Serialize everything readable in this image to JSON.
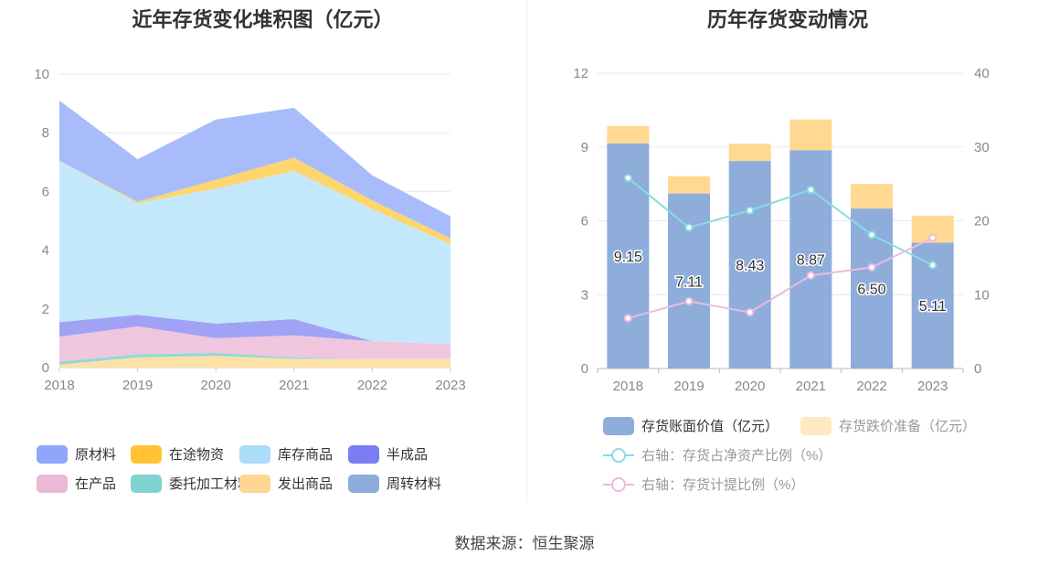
{
  "left_title": "近年存货变化堆积图（亿元）",
  "right_title": "历年存货变动情况",
  "source": "数据来源：恒生聚源",
  "chart_data": [
    {
      "type": "area",
      "stacked": true,
      "title": "近年存货变化堆积图（亿元）",
      "x": [
        "2018",
        "2019",
        "2020",
        "2021",
        "2022",
        "2023"
      ],
      "y_ticks": [
        "0",
        "2",
        "4",
        "6",
        "8",
        "10"
      ],
      "ylim": [
        0,
        10
      ],
      "grid": true,
      "legend_position": "bottom",
      "series": [
        {
          "name": "周转材料",
          "color": "#8fabdc",
          "values": [
            0,
            0,
            0,
            0,
            0,
            0
          ]
        },
        {
          "name": "发出商品",
          "color": "#ffe0a6",
          "values": [
            0.1,
            0.35,
            0.4,
            0.3,
            0.3,
            0.3
          ]
        },
        {
          "name": "委托加工材料",
          "color": "#8ed9d6",
          "values": [
            0.1,
            0.1,
            0.1,
            0.05,
            0,
            0
          ]
        },
        {
          "name": "在产品",
          "color": "#f0c6de",
          "values": [
            0.85,
            0.95,
            0.5,
            0.75,
            0.6,
            0.5
          ]
        },
        {
          "name": "半成品",
          "color": "#a0a3f5",
          "values": [
            0.5,
            0.4,
            0.5,
            0.55,
            0,
            0
          ]
        },
        {
          "name": "库存商品",
          "color": "#c3e8fb",
          "values": [
            5.5,
            3.8,
            4.6,
            5.05,
            4.5,
            3.4
          ]
        },
        {
          "name": "在途物资",
          "color": "#ffd56e",
          "values": [
            0,
            0.05,
            0.3,
            0.45,
            0.3,
            0.2
          ]
        },
        {
          "name": "原材料",
          "color": "#a8bcfb",
          "values": [
            2.05,
            1.45,
            2.05,
            1.7,
            0.85,
            0.75
          ]
        }
      ],
      "legend": [
        {
          "name": "原材料",
          "color": "#8fa6fa"
        },
        {
          "name": "在途物资",
          "color": "#ffc333"
        },
        {
          "name": "库存商品",
          "color": "#a8dcf8"
        },
        {
          "name": "半成品",
          "color": "#7a7ef0"
        },
        {
          "name": "在产品",
          "color": "#ebb8d6"
        },
        {
          "name": "委托加工材料",
          "color": "#7fd3d0"
        },
        {
          "name": "发出商品",
          "color": "#ffd591"
        },
        {
          "name": "周转材料",
          "color": "#8fabdc"
        }
      ]
    },
    {
      "type": "bar",
      "stacked": true,
      "title": "历年存货变动情况",
      "categories": [
        "2018",
        "2019",
        "2020",
        "2021",
        "2022",
        "2023"
      ],
      "ylim_left": [
        0,
        12
      ],
      "ylim_right": [
        0,
        40
      ],
      "y_ticks_left": [
        "0",
        "3",
        "6",
        "9",
        "12"
      ],
      "y_ticks_right": [
        "0",
        "10",
        "20",
        "30",
        "40"
      ],
      "grid": true,
      "legend_position": "bottom",
      "bars": [
        {
          "name": "存货账面价值（亿元）",
          "color": "#8eaddb",
          "values": [
            9.15,
            7.11,
            8.43,
            8.87,
            6.5,
            5.11
          ],
          "labels": [
            "9.15",
            "7.11",
            "8.43",
            "8.87",
            "6.50",
            "5.11"
          ]
        },
        {
          "name": "存货跌价准备（亿元）",
          "color": "#ffd892",
          "values": [
            0.7,
            0.7,
            0.7,
            1.25,
            1.0,
            1.1
          ]
        }
      ],
      "lines": [
        {
          "name": "右轴：存货占净资产比例（%）",
          "color": "#88dcdf",
          "values": [
            25.8,
            19.1,
            21.4,
            24.2,
            18.1,
            14.0
          ]
        },
        {
          "name": "右轴：存货计提比例（%）",
          "color": "#ebbbe0",
          "values": [
            6.8,
            9.1,
            7.6,
            12.6,
            13.7,
            17.7
          ]
        }
      ],
      "legend_label_colors": [
        "#333333",
        "#999999",
        "#999999",
        "#999999"
      ]
    }
  ]
}
